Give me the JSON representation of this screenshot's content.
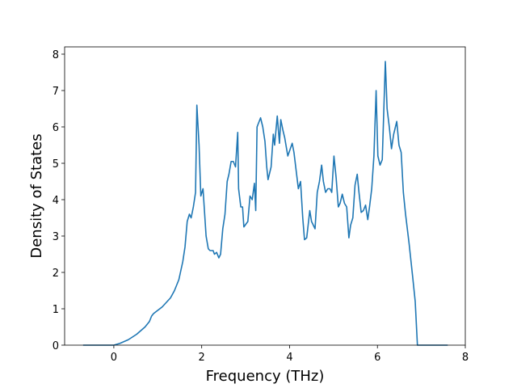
{
  "chart_data": {
    "type": "line",
    "xlabel": "Frequency (THz)",
    "ylabel": "Density of States",
    "xlim": [
      -1.12,
      8.0
    ],
    "ylim": [
      0,
      8.2
    ],
    "xticks": [
      0,
      2,
      4,
      6,
      8
    ],
    "yticks": [
      0,
      1,
      2,
      3,
      4,
      5,
      6,
      7,
      8
    ],
    "grid": false,
    "series": [
      {
        "color": "#1f77b4",
        "x": [
          -0.7,
          0,
          0.14,
          0.33,
          0.52,
          0.71,
          0.81,
          0.86,
          0.905,
          1.1,
          1.29,
          1.38,
          1.48,
          1.57,
          1.62,
          1.67,
          1.72,
          1.76,
          1.81,
          1.86,
          1.89,
          1.94,
          1.98,
          2.03,
          2.1,
          2.15,
          2.19,
          2.26,
          2.29,
          2.34,
          2.39,
          2.43,
          2.48,
          2.53,
          2.58,
          2.62,
          2.67,
          2.72,
          2.77,
          2.82,
          2.84,
          2.89,
          2.93,
          2.96,
          3.05,
          3.1,
          3.15,
          3.2,
          3.23,
          3.26,
          3.34,
          3.39,
          3.44,
          3.48,
          3.51,
          3.58,
          3.63,
          3.66,
          3.72,
          3.77,
          3.8,
          3.85,
          3.89,
          3.96,
          4.06,
          4.1,
          4.2,
          4.25,
          4.3,
          4.34,
          4.39,
          4.46,
          4.5,
          4.58,
          4.63,
          4.68,
          4.73,
          4.77,
          4.82,
          4.87,
          4.92,
          4.96,
          5.01,
          5.06,
          5.11,
          5.15,
          5.2,
          5.25,
          5.3,
          5.35,
          5.39,
          5.44,
          5.49,
          5.54,
          5.58,
          5.63,
          5.68,
          5.73,
          5.78,
          5.82,
          5.87,
          5.92,
          5.97,
          6.01,
          6.06,
          6.11,
          6.18,
          6.22,
          6.27,
          6.32,
          6.37,
          6.44,
          6.49,
          6.54,
          6.59,
          6.64,
          6.72,
          6.8,
          6.86,
          6.91,
          7.6
        ],
        "values": [
          0,
          0,
          0.05,
          0.15,
          0.3,
          0.5,
          0.65,
          0.8,
          0.87,
          1.05,
          1.3,
          1.5,
          1.8,
          2.3,
          2.7,
          3.4,
          3.6,
          3.5,
          3.8,
          4.2,
          6.6,
          5.5,
          4.1,
          4.3,
          3.0,
          2.65,
          2.6,
          2.6,
          2.5,
          2.55,
          2.4,
          2.5,
          3.2,
          3.6,
          4.5,
          4.7,
          5.05,
          5.05,
          4.9,
          5.85,
          4.3,
          3.8,
          3.8,
          3.25,
          3.4,
          4.1,
          4.0,
          4.45,
          3.7,
          6.0,
          6.25,
          6.0,
          5.6,
          4.9,
          4.55,
          4.9,
          5.8,
          5.5,
          6.3,
          5.55,
          6.2,
          5.9,
          5.7,
          5.2,
          5.55,
          5.3,
          4.3,
          4.5,
          3.5,
          2.9,
          2.95,
          3.7,
          3.4,
          3.2,
          4.2,
          4.5,
          4.95,
          4.5,
          4.2,
          4.3,
          4.3,
          4.2,
          5.2,
          4.6,
          3.8,
          3.9,
          4.15,
          3.9,
          3.8,
          2.95,
          3.3,
          3.5,
          4.4,
          4.7,
          4.2,
          3.65,
          3.7,
          3.85,
          3.45,
          3.8,
          4.3,
          5.2,
          7.0,
          5.2,
          4.95,
          5.1,
          7.8,
          6.5,
          6.0,
          5.4,
          5.8,
          6.15,
          5.5,
          5.3,
          4.2,
          3.6,
          2.8,
          1.9,
          1.2,
          0,
          0
        ]
      }
    ]
  }
}
